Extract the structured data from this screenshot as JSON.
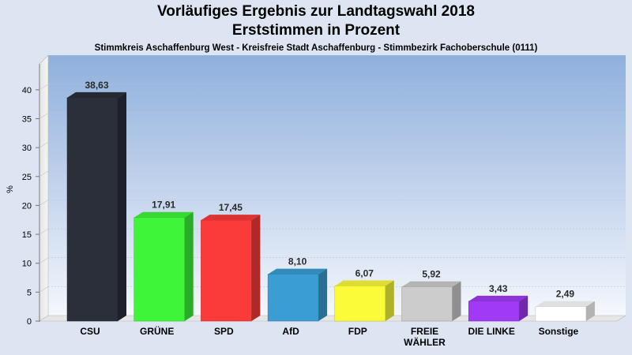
{
  "chart_data": {
    "type": "bar",
    "title": "Vorläufiges Ergebnis zur Landtagswahl 2018",
    "subtitle": "Erststimmen in Prozent",
    "subsubtitle": "Stimmkreis Aschaffenburg West - Kreisfreie Stadt Aschaffenburg - Stimmbezirk Fachoberschule (0111)",
    "ylabel": "%",
    "xlabel": "",
    "ylim": [
      0,
      45
    ],
    "yticks": [
      0,
      5,
      10,
      15,
      20,
      25,
      30,
      35,
      40
    ],
    "grid": true,
    "categories": [
      "CSU",
      "GRÜNE",
      "SPD",
      "AfD",
      "FDP",
      "FREIE\nWÄHLER",
      "DIE LINKE",
      "Sonstige"
    ],
    "values": [
      38.63,
      17.91,
      17.45,
      8.1,
      6.07,
      5.92,
      3.43,
      2.49
    ],
    "value_labels": [
      "38,63",
      "17,91",
      "17,45",
      "8,10",
      "6,07",
      "5,92",
      "3,43",
      "2,49"
    ],
    "colors": [
      "#2b2f3a",
      "#3ef53a",
      "#fb3a3a",
      "#3a9ed4",
      "#fbfb3a",
      "#cccccc",
      "#a03af5",
      "#ffffff"
    ]
  }
}
